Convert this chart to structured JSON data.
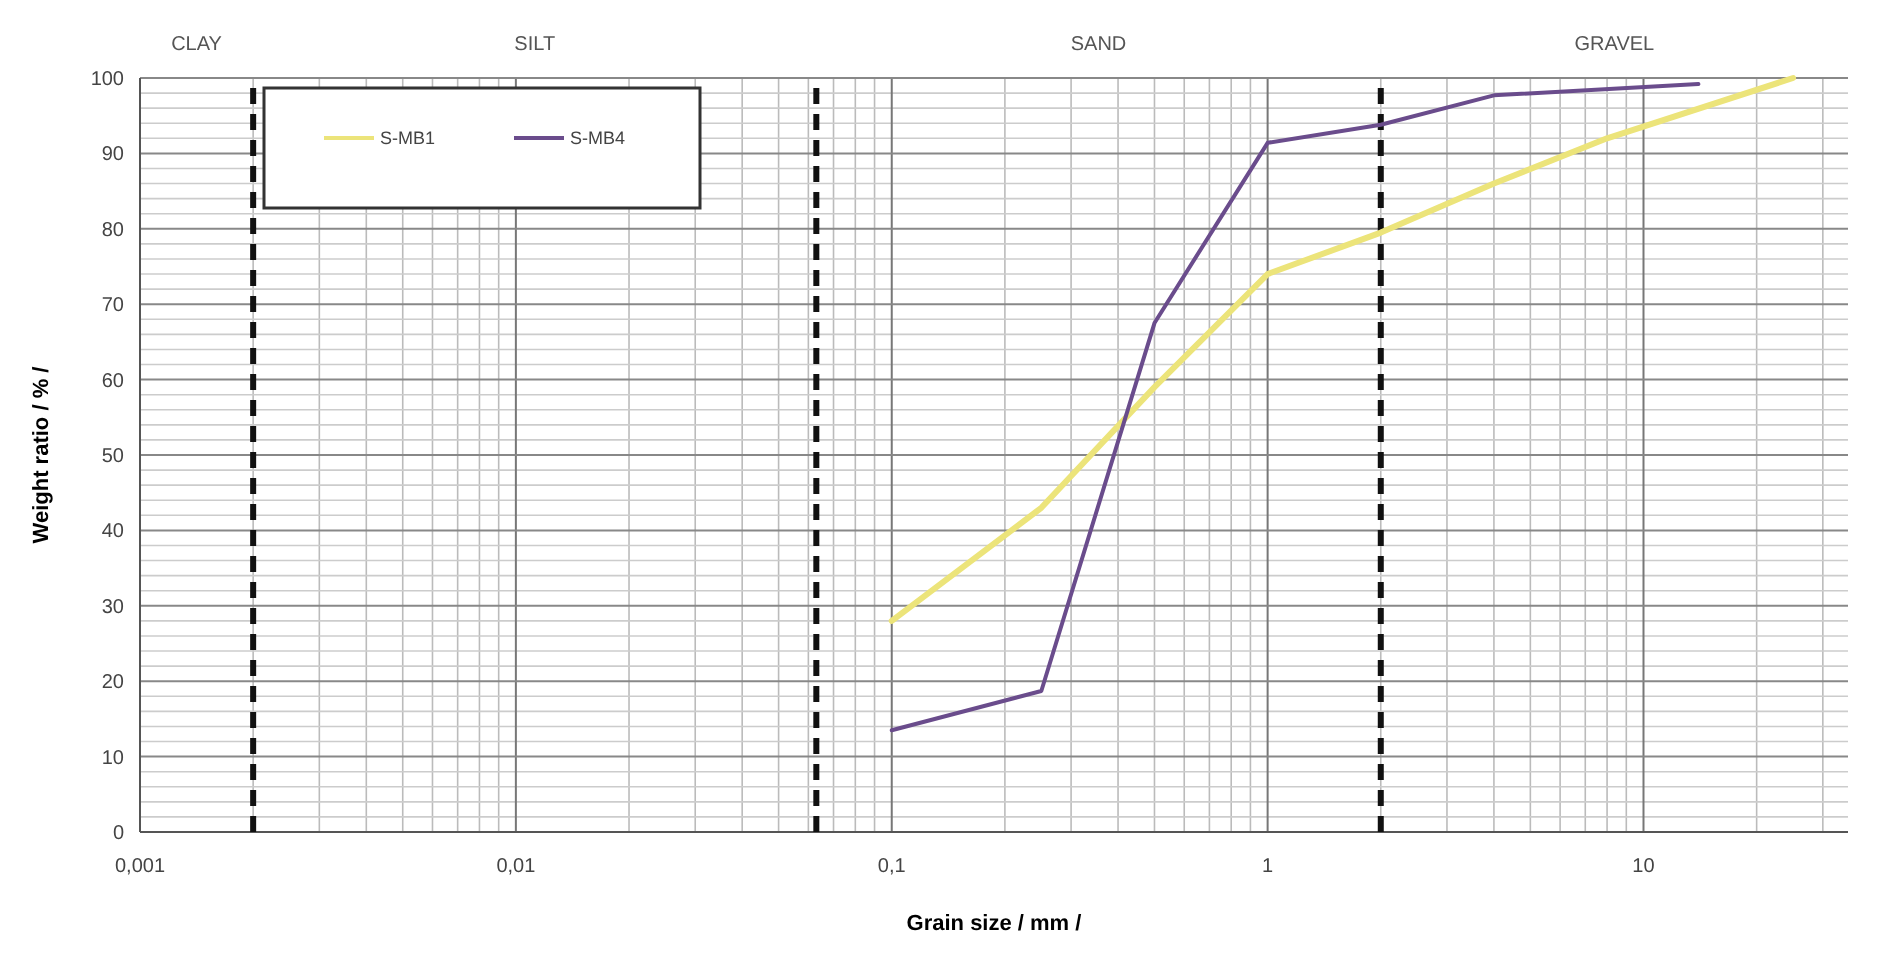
{
  "chart_data": {
    "type": "line",
    "xlabel": "Grain size  / mm /",
    "ylabel": "Weight ratio  / % /",
    "log": "x",
    "grid": true,
    "legend": "top left",
    "marker": "none",
    "line_style": "solid",
    "xlim": [
      0.001,
      35
    ],
    "ylim": [
      0,
      100
    ],
    "xticks": [
      {
        "value": 0.001,
        "label": "0,001"
      },
      {
        "value": 0.01,
        "label": "0,01"
      },
      {
        "value": 0.1,
        "label": "0,1"
      },
      1,
      10
    ],
    "yticks": [
      0,
      10,
      20,
      30,
      40,
      50,
      60,
      70,
      80,
      90,
      100
    ],
    "series": [
      {
        "name": "S-MB1",
        "color": "#ece47a",
        "x": [
          0.1,
          0.25,
          0.5,
          1,
          2,
          4,
          8,
          25
        ],
        "values": [
          28,
          43,
          59,
          74,
          79.5,
          86,
          92,
          100
        ]
      },
      {
        "name": "S-MB4",
        "color": "#6a4c8c",
        "x": [
          0.1,
          0.25,
          0.5,
          1,
          2,
          4,
          14
        ],
        "values": [
          13.5,
          18.7,
          67.5,
          91.4,
          93.8,
          97.7,
          99.2
        ]
      }
    ],
    "ref_lines": [
      {
        "axis": "x",
        "value": 0.002,
        "color": "#111111",
        "line_style": "dashed"
      },
      {
        "axis": "x",
        "value": 0.063,
        "color": "#111111",
        "line_style": "dashed"
      },
      {
        "axis": "x",
        "value": 2,
        "color": "#111111",
        "line_style": "dashed"
      }
    ],
    "annotations": [
      "CLAY",
      "SILT",
      "SAND",
      "GRAVEL"
    ]
  }
}
